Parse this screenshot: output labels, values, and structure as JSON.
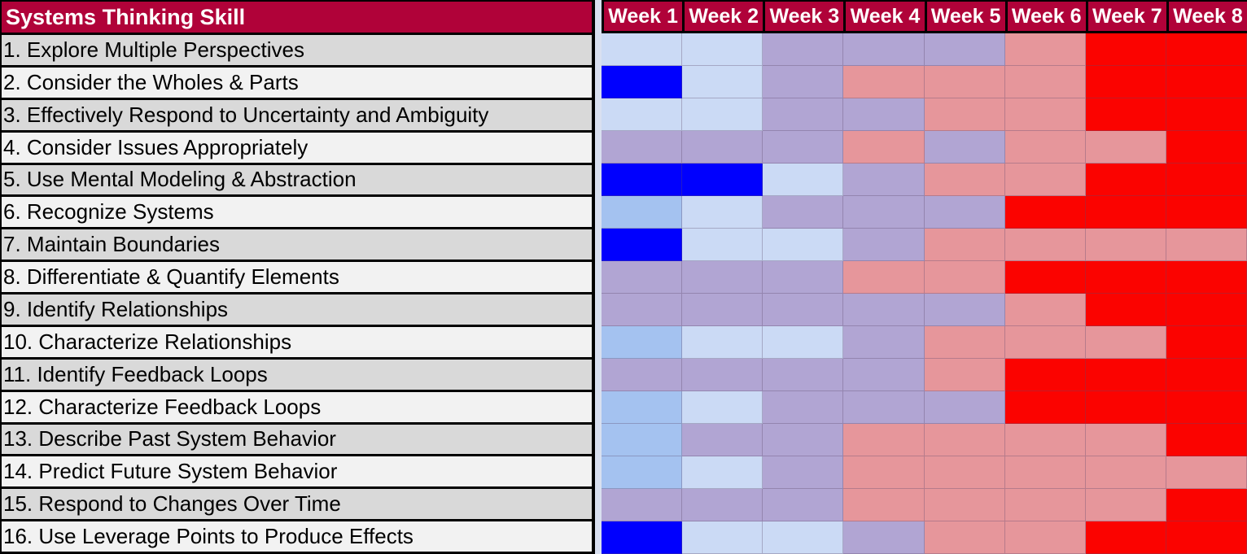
{
  "header": {
    "title": "Systems Thinking Skill"
  },
  "colors": {
    "header_bg": "#B00239",
    "header_text": "#FFFFFF",
    "row_odd_bg": "#D9D9D9",
    "row_even_bg": "#F2F2F2",
    "label_text": "#000000",
    "table_border": "#000000",
    "gap_bg": "#D9E0F0"
  },
  "chart_data": {
    "type": "heatmap",
    "title": "Systems Thinking Skill",
    "xlabel": "",
    "ylabel": "",
    "legend_position": "none",
    "grid": true,
    "x_categories": [
      "Week 1",
      "Week 2",
      "Week 3",
      "Week 4",
      "Week 5",
      "Week 6",
      "Week 7",
      "Week 8"
    ],
    "y_categories": [
      "1. Explore Multiple Perspectives",
      "2. Consider the Wholes & Parts",
      "3. Effectively Respond to Uncertainty and Ambiguity",
      "4. Consider Issues Appropriately",
      "5. Use Mental Modeling & Abstraction",
      "6. Recognize Systems",
      "7. Maintain Boundaries",
      "8. Differentiate & Quantify Elements",
      "9. Identify Relationships",
      "10. Characterize Relationships",
      "11. Identify Feedback Loops",
      "12. Characterize Feedback Loops",
      "13. Describe Past System Behavior",
      "14. Predict Future System Behavior",
      "15. Respond to Changes Over Time",
      "16. Use Leverage Points to Produce Effects"
    ],
    "palette": {
      "B": {
        "name": "bright-blue",
        "hex": "#0000FE"
      },
      "M": {
        "name": "medium-blue",
        "hex": "#A4C2F0"
      },
      "L": {
        "name": "light-blue",
        "hex": "#CBDAF5"
      },
      "P": {
        "name": "purple",
        "hex": "#B1A5D3"
      },
      "S": {
        "name": "salmon",
        "hex": "#E6969B"
      },
      "R": {
        "name": "red",
        "hex": "#FB0300"
      }
    },
    "values": [
      [
        "L",
        "L",
        "P",
        "P",
        "P",
        "S",
        "R",
        "R"
      ],
      [
        "B",
        "L",
        "P",
        "S",
        "S",
        "S",
        "R",
        "R"
      ],
      [
        "L",
        "L",
        "P",
        "P",
        "S",
        "S",
        "R",
        "R"
      ],
      [
        "P",
        "P",
        "P",
        "S",
        "P",
        "S",
        "S",
        "R"
      ],
      [
        "B",
        "B",
        "L",
        "P",
        "S",
        "S",
        "R",
        "R"
      ],
      [
        "M",
        "L",
        "P",
        "P",
        "P",
        "R",
        "R",
        "R"
      ],
      [
        "B",
        "L",
        "L",
        "P",
        "S",
        "S",
        "S",
        "S"
      ],
      [
        "P",
        "P",
        "P",
        "S",
        "S",
        "R",
        "R",
        "R"
      ],
      [
        "P",
        "P",
        "P",
        "P",
        "P",
        "S",
        "R",
        "R"
      ],
      [
        "M",
        "L",
        "L",
        "P",
        "S",
        "S",
        "S",
        "R"
      ],
      [
        "P",
        "P",
        "P",
        "P",
        "S",
        "R",
        "R",
        "R"
      ],
      [
        "M",
        "L",
        "P",
        "P",
        "P",
        "R",
        "R",
        "R"
      ],
      [
        "M",
        "P",
        "P",
        "S",
        "S",
        "S",
        "S",
        "R"
      ],
      [
        "M",
        "L",
        "P",
        "S",
        "S",
        "S",
        "S",
        "S"
      ],
      [
        "P",
        "P",
        "P",
        "S",
        "S",
        "S",
        "S",
        "R"
      ],
      [
        "B",
        "L",
        "L",
        "P",
        "S",
        "S",
        "R",
        "R"
      ]
    ]
  }
}
